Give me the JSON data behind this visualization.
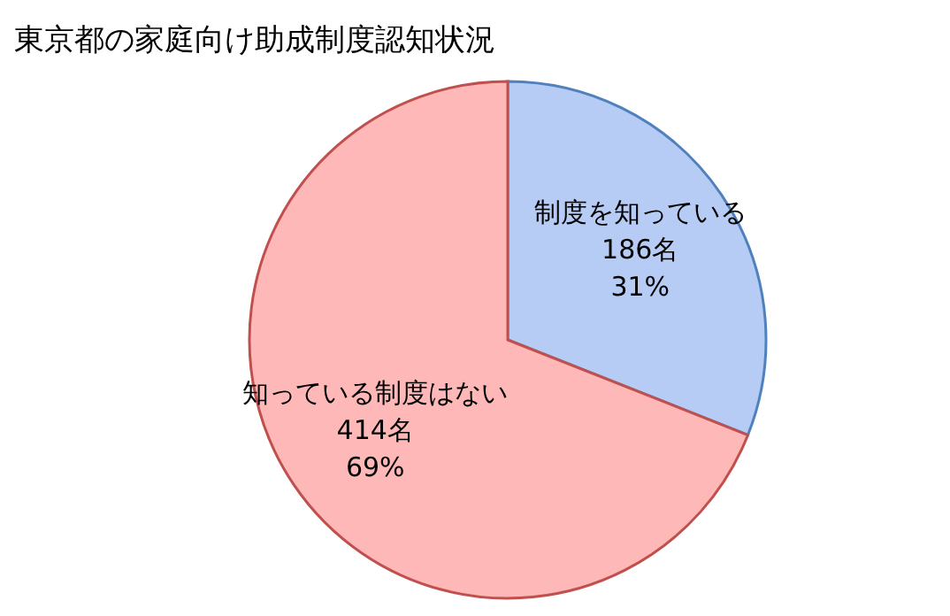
{
  "chart_data": {
    "type": "pie",
    "title": "東京都の家庭向け助成制度認知状況",
    "categories": [
      "制度を知っている",
      "知っている制度はない"
    ],
    "values": [
      186,
      414
    ],
    "colors": [
      "#b7ccf4",
      "#ffb8b8"
    ],
    "value_labels": [
      "186名\n31%",
      "414名\n69%"
    ]
  }
}
